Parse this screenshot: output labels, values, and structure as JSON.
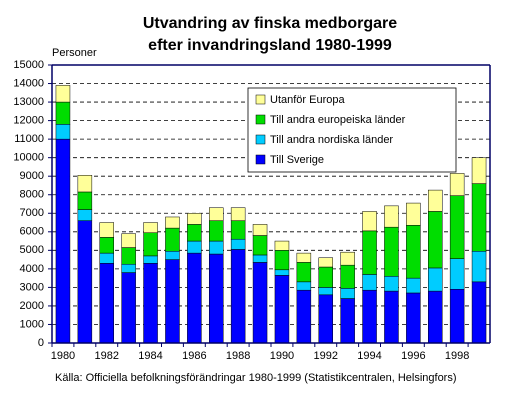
{
  "chart_data": {
    "type": "stacked-bar",
    "title": [
      "Utvandring av finska medborgare",
      "efter invandringsland 1980-1999"
    ],
    "y_label": "Personer",
    "source": "Källa: Officiella befolkningsförändringar 1980-1999 (Statistikcentralen, Helsingfors)",
    "categories": [
      "1980",
      null,
      "1982",
      null,
      "1984",
      null,
      "1986",
      null,
      "1988",
      null,
      "1990",
      null,
      "1992",
      null,
      "1994",
      null,
      "1996",
      null,
      "1998",
      null
    ],
    "series": [
      {
        "name": "Till Sverige",
        "color": "#0000ff",
        "values": [
          11000,
          6600,
          4300,
          3800,
          4300,
          4500,
          4850,
          4800,
          5050,
          4350,
          3650,
          2850,
          2600,
          2400,
          2850,
          2800,
          2700,
          2800,
          2900,
          3300
        ]
      },
      {
        "name": "Till andra nordiska länder",
        "color": "#00ccff",
        "values": [
          800,
          600,
          550,
          450,
          400,
          450,
          650,
          700,
          550,
          400,
          300,
          450,
          400,
          550,
          850,
          800,
          800,
          1250,
          1650,
          1650
        ]
      },
      {
        "name": "Till andra europeiska länder",
        "color": "#00dd00",
        "values": [
          1200,
          950,
          850,
          900,
          1250,
          1250,
          900,
          1100,
          1000,
          1050,
          1050,
          1050,
          1100,
          1250,
          2350,
          2650,
          2850,
          3050,
          3400,
          3650
        ]
      },
      {
        "name": "Utanför Europa",
        "color": "#ffff99",
        "values": [
          900,
          900,
          800,
          750,
          550,
          600,
          600,
          700,
          700,
          600,
          500,
          500,
          500,
          700,
          1050,
          1150,
          1200,
          1150,
          1200,
          1400
        ]
      }
    ],
    "ylim": [
      0,
      15000
    ],
    "yticks": [
      0,
      1000,
      2000,
      3000,
      4000,
      5000,
      6000,
      7000,
      8000,
      9000,
      10000,
      11000,
      12000,
      13000,
      14000,
      15000
    ],
    "grid": true
  }
}
